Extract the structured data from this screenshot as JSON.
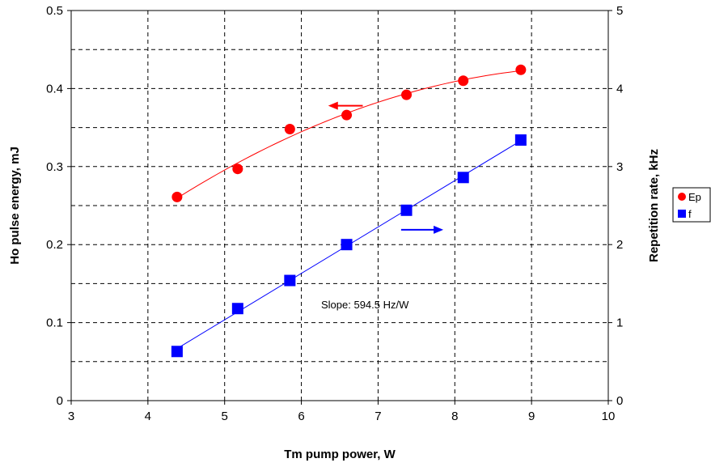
{
  "chart_data": {
    "type": "scatter",
    "xlabel": "Tm pump power, W",
    "ylabel_left": "Ho pulse energy, mJ",
    "ylabel_right": "Repetition rate, kHz",
    "xlim": [
      3,
      10
    ],
    "ylim_left": [
      0,
      0.5
    ],
    "ylim_right": [
      0,
      5
    ],
    "x_ticks": [
      "3",
      "4",
      "5",
      "6",
      "7",
      "8",
      "9",
      "10"
    ],
    "y_ticks_left": [
      "0",
      "0.1",
      "0.2",
      "0.3",
      "0.4",
      "0.5"
    ],
    "y_ticks_right": [
      "0",
      "1",
      "2",
      "3",
      "4",
      "5"
    ],
    "grid": "dashed",
    "legend_position": "right",
    "series": [
      {
        "name": "Ep",
        "axis": "left",
        "marker": "circle",
        "color": "#ff0000",
        "x": [
          4.38,
          5.17,
          5.85,
          6.59,
          7.37,
          8.11,
          8.86
        ],
        "y": [
          0.261,
          0.297,
          0.348,
          0.366,
          0.392,
          0.41,
          0.424
        ],
        "fit": "curve"
      },
      {
        "name": "f",
        "axis": "right",
        "marker": "square",
        "color": "#0000ff",
        "x": [
          4.38,
          5.17,
          5.85,
          6.59,
          7.37,
          8.11,
          8.86
        ],
        "y": [
          0.63,
          1.18,
          1.54,
          2.0,
          2.44,
          2.86,
          3.34
        ],
        "fit": "linear"
      }
    ],
    "annotations": [
      {
        "text": "Slope: 594.5 Hz/W",
        "x": 6.22,
        "y_left": 0.123
      }
    ],
    "arrows": [
      {
        "series": "Ep",
        "direction": "left",
        "x_from": 6.8,
        "x_to": 6.35,
        "y_left": 0.378
      },
      {
        "series": "f",
        "direction": "right",
        "x_from": 7.3,
        "x_to": 7.85,
        "y_left": 0.219
      }
    ]
  }
}
